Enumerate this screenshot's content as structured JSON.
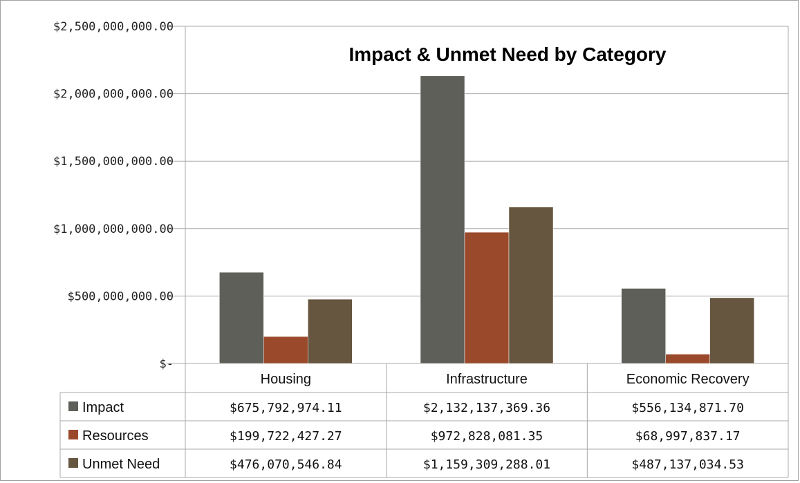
{
  "chart_data": {
    "type": "bar",
    "title": "Impact & Unmet Need by Category",
    "categories": [
      "Housing",
      "Infrastructure",
      "Economic Recovery"
    ],
    "ylim": [
      0,
      2500000000
    ],
    "yticks": [
      0,
      500000000,
      1000000000,
      1500000000,
      2000000000,
      2500000000
    ],
    "ytick_labels": [
      "$-",
      "$500,000,000.00",
      "$1,000,000,000.00",
      "$1,500,000,000.00",
      "$2,000,000,000.00",
      "$2,500,000,000.00"
    ],
    "grid": true,
    "legend": "data-table",
    "series": [
      {
        "name": "Impact",
        "color": "#5f5f5a",
        "values": [
          675792974.11,
          2132137369.36,
          556134871.7
        ],
        "labels": [
          "$675,792,974.11",
          "$2,132,137,369.36",
          "$556,134,871.70"
        ]
      },
      {
        "name": "Resources",
        "color": "#9a4a2a",
        "values": [
          199722427.27,
          972828081.35,
          68997837.17
        ],
        "labels": [
          "$199,722,427.27",
          "$972,828,081.35",
          "$68,997,837.17"
        ]
      },
      {
        "name": "Unmet Need",
        "color": "#66553f",
        "values": [
          476070546.84,
          1159309288.01,
          487137034.53
        ],
        "labels": [
          "$476,070,546.84",
          "$1,159,309,288.01",
          "$487,137,034.53"
        ]
      }
    ]
  }
}
